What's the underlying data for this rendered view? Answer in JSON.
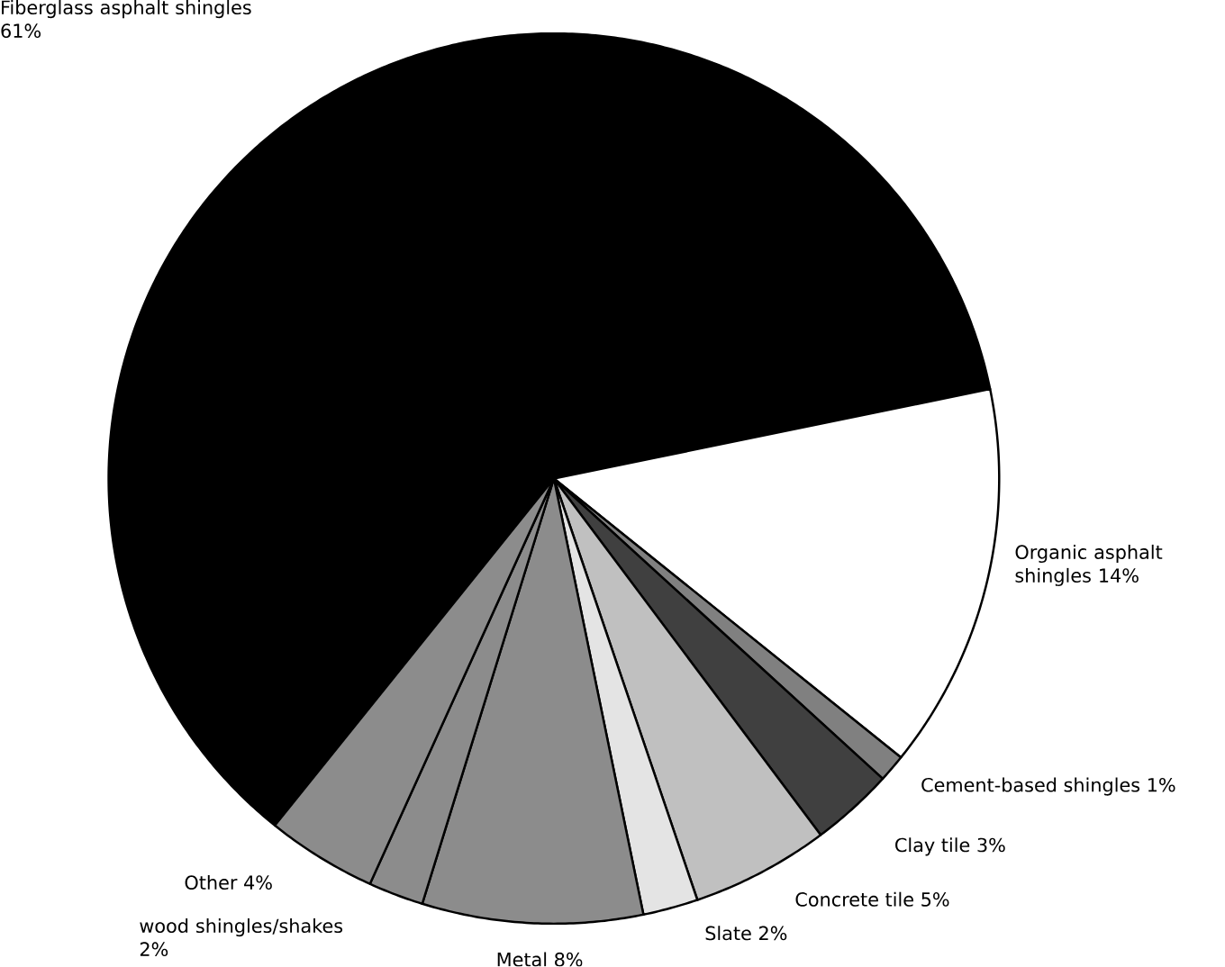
{
  "chart_data": {
    "type": "pie",
    "categories": [
      "Fiberglass asphalt shingles",
      "Organic asphalt shingles",
      "Cement-based shingles",
      "Clay tile",
      "Concrete tile",
      "Slate",
      "Metal",
      "wood shingles/shakes",
      "Other"
    ],
    "values": [
      61,
      14,
      1,
      3,
      5,
      2,
      8,
      2,
      4
    ],
    "value_labels": [
      "61%",
      "14%",
      "1%",
      "3%",
      "5%",
      "2%",
      "8%",
      "2%",
      "4%"
    ],
    "colors": [
      "#000000",
      "#ffffff",
      "#808080",
      "#404040",
      "#c0c0c0",
      "#e4e4e4",
      "#8c8c8c",
      "#8c8c8c",
      "#8c8c8c"
    ]
  }
}
